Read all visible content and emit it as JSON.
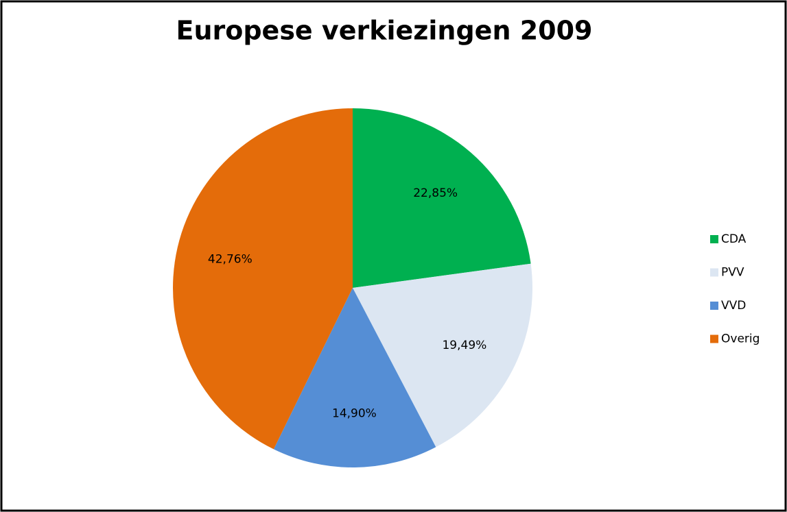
{
  "chart_data": {
    "type": "pie",
    "title": "Europese verkiezingen 2009",
    "categories": [
      "CDA",
      "PVV",
      "VVD",
      "Overig"
    ],
    "values": [
      22.85,
      19.49,
      14.9,
      42.76
    ],
    "value_labels": [
      "22,85%",
      "19,49%",
      "14,90%",
      "42,76%"
    ],
    "colors": [
      "#00b050",
      "#dce6f2",
      "#558ed5",
      "#e46c0a"
    ],
    "legend": "right"
  }
}
